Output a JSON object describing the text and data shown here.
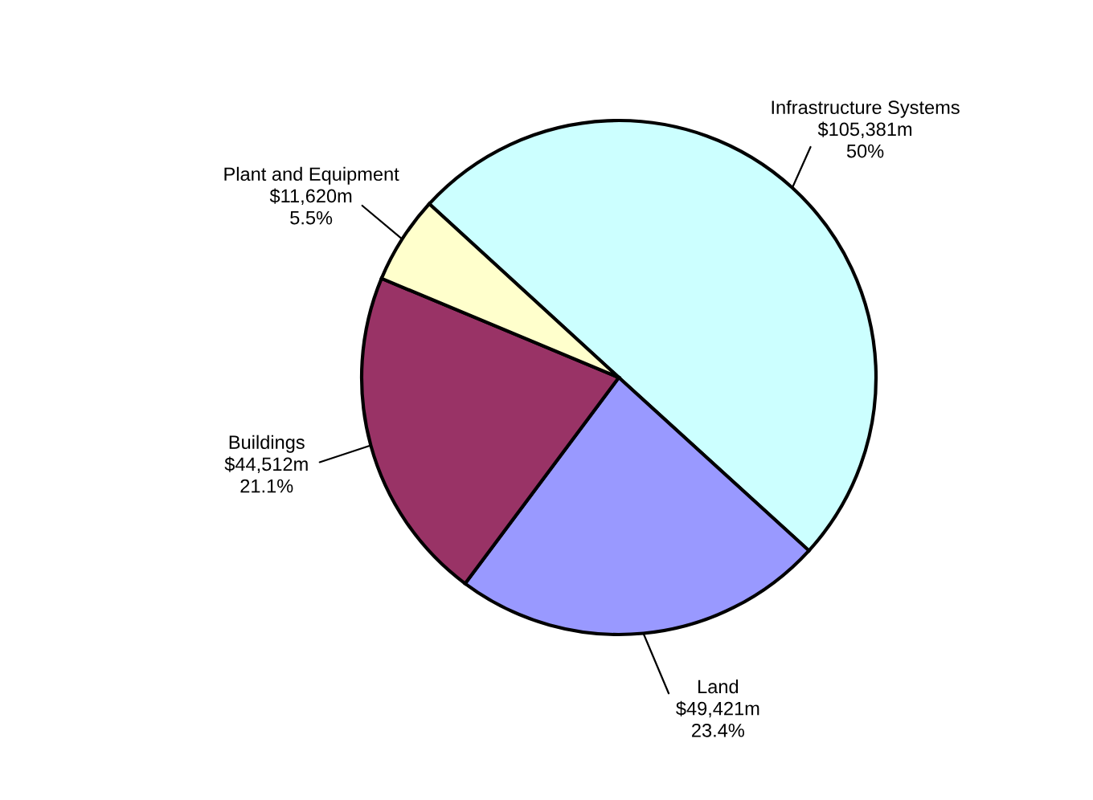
{
  "chart_data": {
    "type": "pie",
    "categories": [
      "Infrastructure Systems",
      "Land",
      "Buildings",
      "Plant and Equipment"
    ],
    "values": [
      105381,
      49421,
      44512,
      11620
    ],
    "value_labels": [
      "$105,381m",
      "$49,421m",
      "$44,512m",
      "$11,620m"
    ],
    "annotations": [
      "50%",
      "23.4%",
      "21.1%",
      "5.5%"
    ],
    "colors": [
      "#ccffff",
      "#9999ff",
      "#993366",
      "#ffffcc"
    ],
    "legend": false
  }
}
